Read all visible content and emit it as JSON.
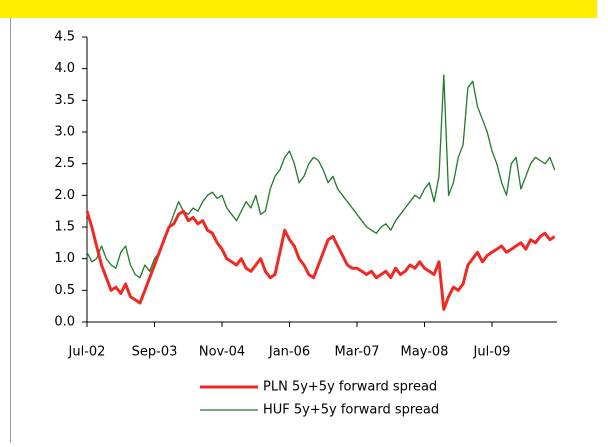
{
  "chart_data": {
    "type": "line",
    "categories": [
      "Jul-02",
      null,
      null,
      null,
      null,
      null,
      null,
      null,
      null,
      null,
      null,
      null,
      null,
      null,
      "Sep-03",
      null,
      null,
      null,
      null,
      null,
      null,
      null,
      null,
      null,
      null,
      null,
      null,
      null,
      "Nov-04",
      null,
      null,
      null,
      null,
      null,
      null,
      null,
      null,
      null,
      null,
      null,
      null,
      null,
      "Jan-06",
      null,
      null,
      null,
      null,
      null,
      null,
      null,
      null,
      null,
      null,
      null,
      null,
      null,
      "Mar-07",
      null,
      null,
      null,
      null,
      null,
      null,
      null,
      null,
      null,
      null,
      null,
      null,
      null,
      "May-08",
      null,
      null,
      null,
      null,
      null,
      null,
      null,
      null,
      null,
      null,
      null,
      null,
      null,
      "Jul-09",
      null,
      null,
      null,
      null,
      null,
      null,
      null,
      null,
      null,
      null,
      null,
      null,
      null
    ],
    "series": [
      {
        "name": "PLN 5y+5y forward spread",
        "color": "#ee2a24",
        "width": 3,
        "values": [
          1.75,
          1.5,
          1.2,
          0.9,
          0.7,
          0.5,
          0.55,
          0.45,
          0.6,
          0.4,
          0.35,
          0.3,
          0.5,
          0.7,
          0.9,
          1.1,
          1.3,
          1.5,
          1.55,
          1.7,
          1.75,
          1.6,
          1.65,
          1.55,
          1.6,
          1.45,
          1.4,
          1.25,
          1.15,
          1.0,
          0.95,
          0.9,
          1.0,
          0.85,
          0.8,
          0.9,
          1.0,
          0.8,
          0.7,
          0.75,
          1.1,
          1.45,
          1.3,
          1.2,
          1.0,
          0.9,
          0.75,
          0.7,
          0.9,
          1.1,
          1.3,
          1.35,
          1.2,
          1.05,
          0.9,
          0.85,
          0.85,
          0.8,
          0.75,
          0.8,
          0.7,
          0.75,
          0.8,
          0.7,
          0.85,
          0.75,
          0.8,
          0.9,
          0.85,
          0.95,
          0.85,
          0.8,
          0.75,
          0.95,
          0.2,
          0.4,
          0.55,
          0.5,
          0.6,
          0.9,
          1.0,
          1.1,
          0.95,
          1.05,
          1.1,
          1.15,
          1.2,
          1.1,
          1.15,
          1.2,
          1.25,
          1.15,
          1.3,
          1.25,
          1.35,
          1.4,
          1.3,
          1.35
        ]
      },
      {
        "name": "HUF 5y+5y forward spread",
        "color": "#1f7a2a",
        "width": 1.3,
        "values": [
          1.1,
          0.95,
          1.0,
          1.2,
          1.0,
          0.9,
          0.85,
          1.1,
          1.2,
          0.9,
          0.75,
          0.7,
          0.9,
          0.8,
          1.0,
          1.1,
          1.3,
          1.5,
          1.7,
          1.9,
          1.75,
          1.7,
          1.8,
          1.75,
          1.9,
          2.0,
          2.05,
          1.95,
          2.0,
          1.8,
          1.7,
          1.6,
          1.75,
          1.9,
          1.8,
          2.0,
          1.7,
          1.75,
          2.1,
          2.3,
          2.4,
          2.6,
          2.7,
          2.5,
          2.2,
          2.3,
          2.5,
          2.6,
          2.55,
          2.4,
          2.2,
          2.3,
          2.1,
          2.0,
          1.9,
          1.8,
          1.7,
          1.6,
          1.5,
          1.45,
          1.4,
          1.5,
          1.55,
          1.45,
          1.6,
          1.7,
          1.8,
          1.9,
          2.0,
          1.95,
          2.1,
          2.2,
          1.9,
          2.3,
          3.9,
          2.0,
          2.2,
          2.6,
          2.8,
          3.7,
          3.8,
          3.4,
          3.2,
          3.0,
          2.7,
          2.5,
          2.2,
          2.0,
          2.5,
          2.6,
          2.1,
          2.3,
          2.5,
          2.6,
          2.55,
          2.5,
          2.6,
          2.4
        ]
      }
    ],
    "ylim": [
      0,
      4.5
    ],
    "yticks": [
      {
        "value": 0,
        "label": "0.0"
      },
      0.5,
      {
        "value": 1,
        "label": "1.0"
      },
      1.5,
      {
        "value": 2,
        "label": "2.0"
      },
      2.5,
      {
        "value": 3,
        "label": "3.0"
      },
      3.5,
      {
        "value": 4,
        "label": "4.0"
      },
      4.5
    ],
    "legend": "bottom"
  }
}
